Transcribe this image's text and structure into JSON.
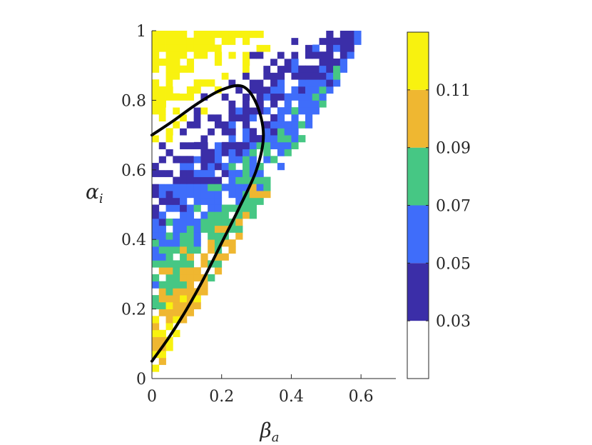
{
  "chart_data": {
    "type": "heatmap",
    "xlabel": "β",
    "xlabel_sub": "a",
    "ylabel": "α",
    "ylabel_sub": "i",
    "xlim": [
      0,
      0.7
    ],
    "ylim": [
      0,
      1
    ],
    "x_ticks": [
      "0",
      "0.2",
      "0.4",
      "0.6"
    ],
    "y_ticks": [
      "0",
      "0.2",
      "0.4",
      "0.6",
      "0.8",
      "1"
    ],
    "colorbar": {
      "tick_labels": [
        "0.03",
        "0.05",
        "0.07",
        "0.09",
        "0.11"
      ],
      "tick_values": [
        0.03,
        0.05,
        0.07,
        0.09,
        0.11
      ],
      "range": [
        0.01,
        0.13
      ],
      "levels": [
        {
          "range": [
            0.01,
            0.03
          ],
          "color": "#ffffff"
        },
        {
          "range": [
            0.03,
            0.05
          ],
          "color": "#3b2ea8"
        },
        {
          "range": [
            0.05,
            0.07
          ],
          "color": "#3f6dfa"
        },
        {
          "range": [
            0.07,
            0.09
          ],
          "color": "#46c784"
        },
        {
          "range": [
            0.09,
            0.11
          ],
          "color": "#efb731"
        },
        {
          "range": [
            0.11,
            0.13
          ],
          "color": "#f8f20f"
        }
      ]
    },
    "grid": {
      "dx": 0.02,
      "dy": 0.02,
      "wedge_slope": 1.6,
      "x_max": 0.6,
      "fill_probability": 0.85
    },
    "curve": {
      "color": "#000000",
      "x": [
        0.0,
        0.05,
        0.1,
        0.15,
        0.2,
        0.25,
        0.3,
        0.32,
        0.3,
        0.26,
        0.2,
        0.13,
        0.06,
        0.0
      ],
      "y": [
        0.05,
        0.12,
        0.2,
        0.29,
        0.39,
        0.49,
        0.6,
        0.7,
        0.79,
        0.84,
        0.83,
        0.79,
        0.74,
        0.7
      ]
    }
  }
}
